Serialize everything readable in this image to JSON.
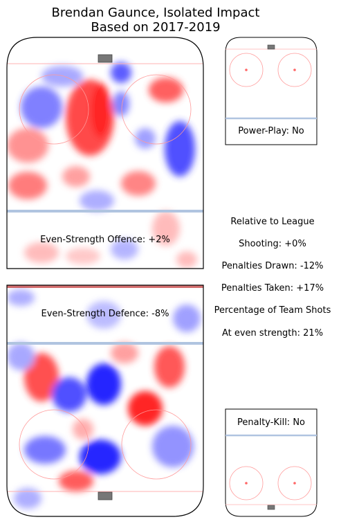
{
  "chart_data": {
    "type": "heatmap",
    "title": "Brendan Gaunce, Isolated Impact",
    "subtitle": "Based on 2017-2019",
    "panels": [
      {
        "name": "Even-Strength Offence",
        "label": "Even-Strength Offence: +2%",
        "value_pct": 2
      },
      {
        "name": "Even-Strength Defence",
        "label": "Even-Strength Defence: -8%",
        "value_pct": -8
      },
      {
        "name": "Power-Play",
        "label": "Power-Play: No"
      },
      {
        "name": "Penalty-Kill",
        "label": "Penalty-Kill: No"
      }
    ],
    "stats": {
      "header": "Relative to League",
      "shooting": "Shooting: +0%",
      "penalties_drawn": "Penalties Drawn: -12%",
      "penalties_taken": "Penalties Taken: +17%",
      "team_shots_header": "Percentage of Team Shots",
      "even_strength": "At even strength: 21%"
    },
    "colors": {
      "positive": "#ff0000",
      "negative": "#0000ff",
      "line": "#b0c4e0",
      "rink": "#000000"
    }
  }
}
